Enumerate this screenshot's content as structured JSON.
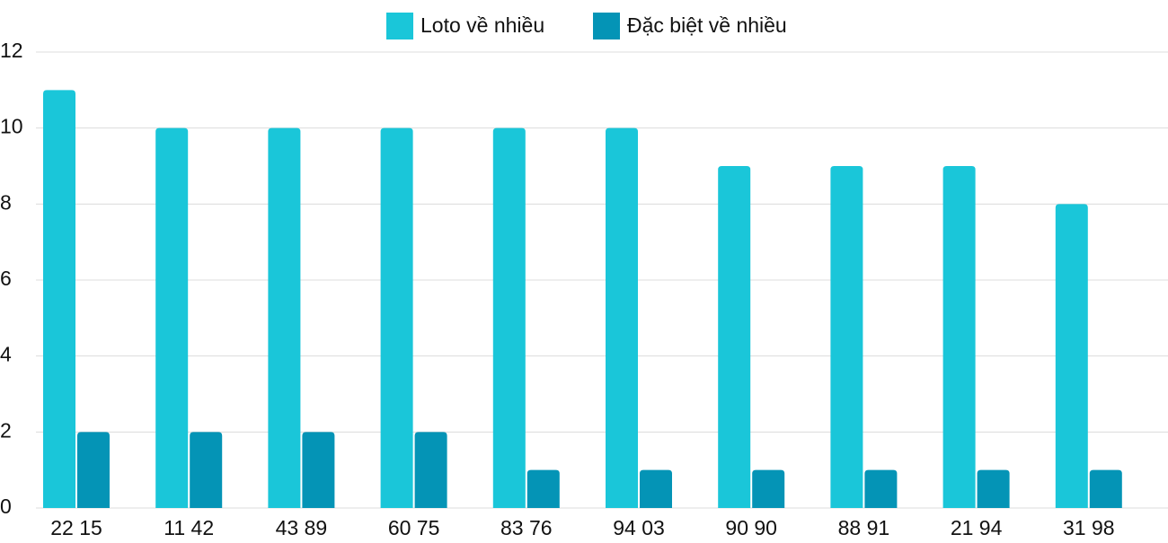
{
  "chart_data": {
    "type": "bar",
    "categories": [
      "22 15",
      "11 42",
      "43 89",
      "60 75",
      "83 76",
      "94 03",
      "90 90",
      "88 91",
      "21 94",
      "31 98"
    ],
    "series": [
      {
        "name": "Loto về nhiều",
        "color": "#1ac6d9",
        "values": [
          11,
          10,
          10,
          10,
          10,
          10,
          9,
          9,
          9,
          8
        ]
      },
      {
        "name": "Đặc biệt về nhiều",
        "color": "#0494b6",
        "values": [
          2,
          2,
          2,
          2,
          1,
          1,
          1,
          1,
          1,
          1
        ]
      }
    ],
    "ylim": [
      0,
      12
    ],
    "yticks": [
      0,
      2,
      4,
      6,
      8,
      10,
      12
    ],
    "grid": true,
    "legend": "top"
  }
}
